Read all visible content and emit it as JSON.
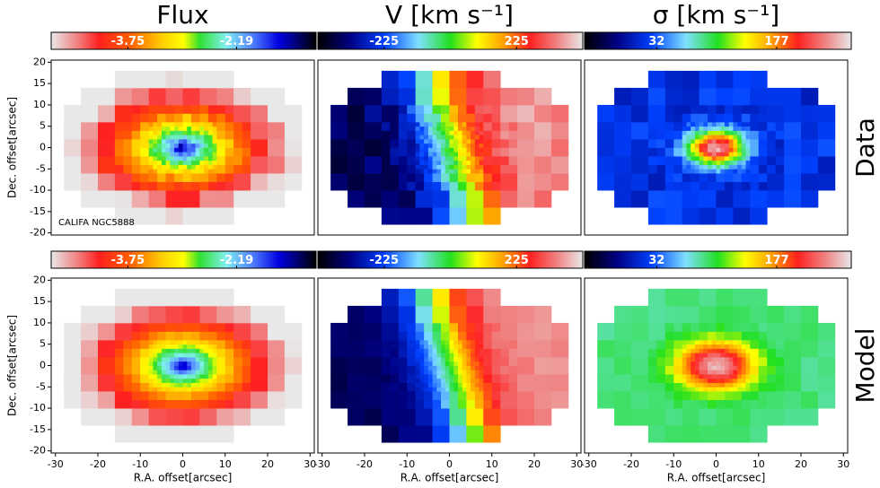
{
  "chart_data": [
    {
      "type": "heatmap",
      "title": "Flux",
      "clim": [
        -4.85,
        -1.05
      ],
      "cticks": [
        -3.75,
        -2.19
      ],
      "xlim": [
        -31,
        31
      ],
      "ylim": [
        -20.5,
        20.5
      ],
      "ylabel": "Dec. offset[arcsec]",
      "yticks": [
        -20,
        -15,
        -10,
        -5,
        0,
        5,
        10,
        15,
        20
      ],
      "annotation": "CALIFA NGC5888"
    },
    {
      "type": "heatmap",
      "title": "V [km s⁻¹]",
      "clim": [
        -450,
        450
      ],
      "cticks": [
        -225,
        225
      ],
      "xlim": [
        -31,
        31
      ],
      "ylim": [
        -20.5,
        20.5
      ]
    },
    {
      "type": "heatmap",
      "title": "σ [km s⁻¹]",
      "clim": [
        -55,
        267
      ],
      "cticks": [
        32,
        177
      ],
      "xlim": [
        -31,
        31
      ],
      "ylim": [
        -20.5,
        20.5
      ],
      "row_label": "Data"
    },
    {
      "type": "heatmap",
      "clim": [
        -4.85,
        -1.05
      ],
      "cticks": [
        -3.75,
        -2.19
      ],
      "xlim": [
        -31,
        31
      ],
      "ylim": [
        -20.5,
        20.5
      ],
      "ylabel": "Dec. offset[arcsec]",
      "yticks": [
        -20,
        -15,
        -10,
        -5,
        0,
        5,
        10,
        15,
        20
      ],
      "xlabel": "R.A. offset[arcsec]",
      "xticks": [
        -30,
        -20,
        -10,
        0,
        10,
        20,
        30
      ]
    },
    {
      "type": "heatmap",
      "clim": [
        -450,
        450
      ],
      "cticks": [
        -225,
        225
      ],
      "xlim": [
        -31,
        31
      ],
      "ylim": [
        -20.5,
        20.5
      ],
      "xlabel": "R.A. offset[arcsec]",
      "xticks": [
        -30,
        -20,
        -10,
        0,
        10,
        20,
        30
      ]
    },
    {
      "type": "heatmap",
      "clim": [
        -55,
        267
      ],
      "cticks": [
        32,
        177
      ],
      "xlim": [
        -31,
        31
      ],
      "ylim": [
        -20.5,
        20.5
      ],
      "xlabel": "R.A. offset[arcsec]",
      "xticks": [
        -30,
        -20,
        -10,
        0,
        10,
        20,
        30
      ],
      "row_label": "Model"
    }
  ]
}
